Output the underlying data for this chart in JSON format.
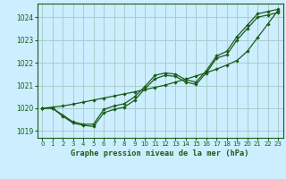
{
  "title": "Graphe pression niveau de la mer (hPa)",
  "bg_color": "#cceeff",
  "grid_color": "#aacccc",
  "line_color": "#1a5c1a",
  "xlim": [
    -0.5,
    23.5
  ],
  "ylim": [
    1018.7,
    1024.6
  ],
  "xticks": [
    0,
    1,
    2,
    3,
    4,
    5,
    6,
    7,
    8,
    9,
    10,
    11,
    12,
    13,
    14,
    15,
    16,
    17,
    18,
    19,
    20,
    21,
    22,
    23
  ],
  "yticks": [
    1019,
    1020,
    1021,
    1022,
    1023,
    1024
  ],
  "series1_x": [
    0,
    1,
    2,
    3,
    4,
    5,
    6,
    7,
    8,
    9,
    10,
    11,
    12,
    13,
    14,
    15,
    16,
    17,
    18,
    19,
    20,
    21,
    22,
    23
  ],
  "series1_y": [
    1020.0,
    1020.0,
    1019.65,
    1019.35,
    1019.25,
    1019.2,
    1019.8,
    1019.95,
    1020.05,
    1020.35,
    1020.85,
    1021.3,
    1021.45,
    1021.4,
    1021.15,
    1021.05,
    1021.55,
    1022.2,
    1022.35,
    1023.0,
    1023.5,
    1024.0,
    1024.1,
    1024.2
  ],
  "series2_x": [
    0,
    1,
    2,
    3,
    4,
    5,
    6,
    7,
    8,
    9,
    10,
    11,
    12,
    13,
    14,
    15,
    16,
    17,
    18,
    19,
    20,
    21,
    22,
    23
  ],
  "series2_y": [
    1020.0,
    1020.0,
    1019.7,
    1019.4,
    1019.3,
    1019.3,
    1019.95,
    1020.1,
    1020.2,
    1020.5,
    1020.95,
    1021.45,
    1021.55,
    1021.5,
    1021.25,
    1021.15,
    1021.65,
    1022.3,
    1022.5,
    1023.15,
    1023.65,
    1024.15,
    1024.25,
    1024.35
  ],
  "series3_x": [
    0,
    1,
    2,
    3,
    4,
    5,
    6,
    7,
    8,
    9,
    10,
    11,
    12,
    13,
    14,
    15,
    16,
    17,
    18,
    19,
    20,
    21,
    22,
    23
  ],
  "series3_y": [
    1020.0,
    1020.05,
    1020.1,
    1020.18,
    1020.27,
    1020.36,
    1020.45,
    1020.54,
    1020.63,
    1020.72,
    1020.82,
    1020.92,
    1021.02,
    1021.15,
    1021.28,
    1021.42,
    1021.56,
    1021.72,
    1021.9,
    1022.1,
    1022.5,
    1023.1,
    1023.7,
    1024.3
  ]
}
